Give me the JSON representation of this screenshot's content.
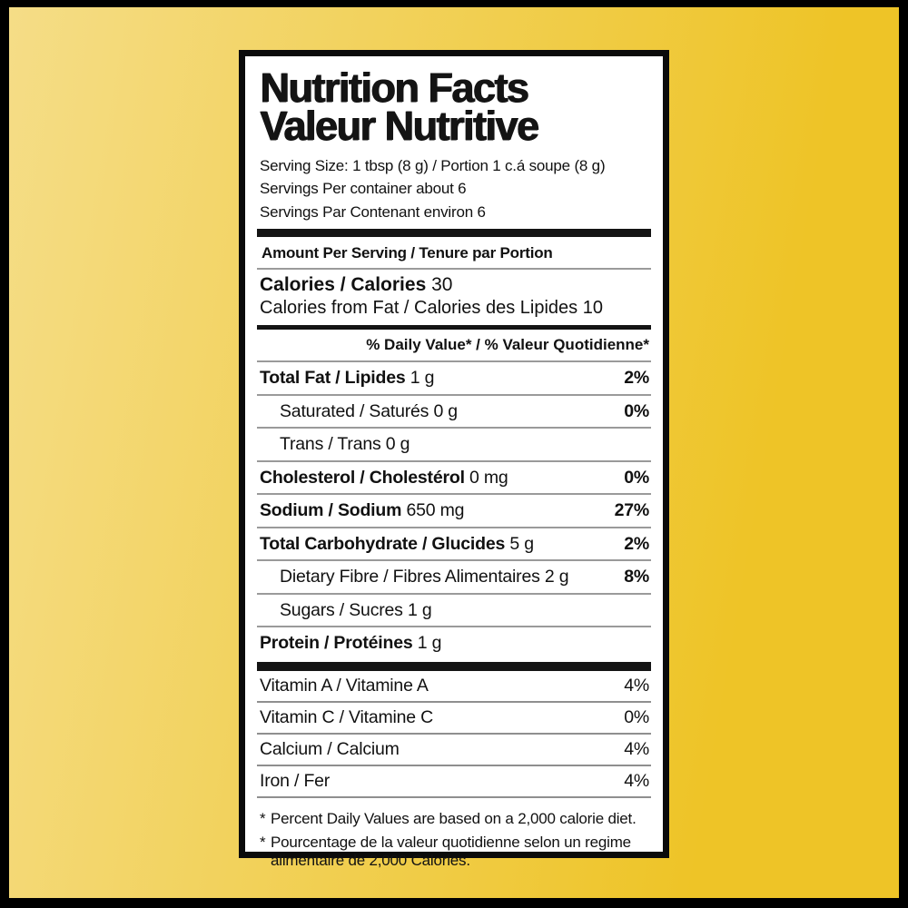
{
  "colors": {
    "background_left": "#f5dd87",
    "background_right": "#eec427",
    "frame": "#000000",
    "panel_background": "#ffffff",
    "text": "#141414"
  },
  "label": {
    "title_line1": "Nutrition Facts",
    "title_line2": "Valeur Nutritive",
    "serving_lines": [
      "Serving Size: 1 tbsp (8 g) / Portion 1 c.á soupe (8 g)",
      "Servings Per container about 6",
      "Servings Par Contenant environ 6"
    ],
    "amount_per_serving": "Amount Per Serving / Tenure par Portion",
    "calories": {
      "label": "Calories / Calories",
      "value": "30"
    },
    "calories_from_fat": {
      "label": "Calories from Fat / Calories des Lipides",
      "value": "10"
    },
    "daily_value_header": "% Daily Value* / % Valeur Quotidienne*",
    "nutrients": [
      {
        "label": "Total Fat / Lipides",
        "amount": "1 g",
        "dv": "2%"
      },
      {
        "label": "Saturated / Saturés",
        "amount": "0 g",
        "dv": "0%"
      },
      {
        "label": "Trans / Trans",
        "amount": "0 g",
        "dv": ""
      },
      {
        "label": "Cholesterol / Cholestérol",
        "amount": "0 mg",
        "dv": "0%"
      },
      {
        "label": "Sodium / Sodium",
        "amount": "650 mg",
        "dv": "27%"
      },
      {
        "label": "Total Carbohydrate / Glucides",
        "amount": "5 g",
        "dv": "2%"
      },
      {
        "label": "Dietary Fibre / Fibres Alimentaires",
        "amount": "2 g",
        "dv": "8%"
      },
      {
        "label": "Sugars / Sucres",
        "amount": "1 g",
        "dv": ""
      },
      {
        "label": "Protein / Protéines",
        "amount": "1 g",
        "dv": ""
      }
    ],
    "vitamins": [
      {
        "label": "Vitamin A / Vitamine A",
        "dv": "4%"
      },
      {
        "label": "Vitamin C / Vitamine C",
        "dv": "0%"
      },
      {
        "label": "Calcium / Calcium",
        "dv": "4%"
      },
      {
        "label": "Iron / Fer",
        "dv": "4%"
      }
    ],
    "footnote_marker": "*",
    "footnotes": [
      "Percent Daily Values are based on a 2,000 calorie diet.",
      "Pourcentage de la valeur quotidienne selon un regime alimentaire de 2,000 Calories."
    ]
  }
}
